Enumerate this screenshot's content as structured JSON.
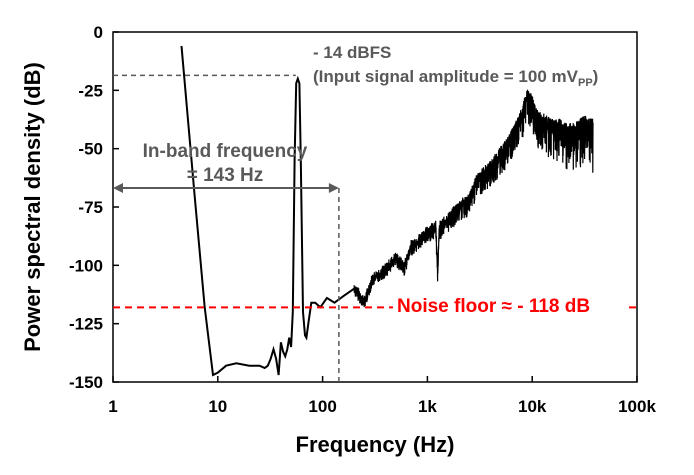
{
  "chart_data": {
    "type": "line",
    "xlabel": "Frequency (Hz)",
    "ylabel": "Power spectral density (dB)",
    "xscale": "log",
    "xlim": [
      1,
      100000
    ],
    "ylim": [
      -150,
      0
    ],
    "grid": false,
    "x_ticks": [
      1,
      10,
      100,
      1000,
      10000,
      100000
    ],
    "x_tick_labels": [
      "1",
      "10",
      "100",
      "1k",
      "10k",
      "100k"
    ],
    "y_ticks": [
      0,
      -25,
      -50,
      -75,
      -100,
      -125,
      -150
    ],
    "y_tick_labels": [
      "0",
      "-25",
      "-50",
      "-75",
      "-100",
      "-125",
      "-150"
    ],
    "series": [
      {
        "color": "#000000",
        "points": [
          [
            4.5,
            -6
          ],
          [
            6,
            -70
          ],
          [
            7.5,
            -118
          ],
          [
            9,
            -147
          ],
          [
            10,
            -146
          ],
          [
            12,
            -143
          ],
          [
            15,
            -142
          ],
          [
            20,
            -143
          ],
          [
            25,
            -143
          ],
          [
            28,
            -144
          ],
          [
            30,
            -143
          ],
          [
            32,
            -140
          ],
          [
            34,
            -136
          ],
          [
            36,
            -140
          ],
          [
            38,
            -147
          ],
          [
            40,
            -133
          ],
          [
            42,
            -137
          ],
          [
            44,
            -139
          ],
          [
            46,
            -136
          ],
          [
            48,
            -131
          ],
          [
            50,
            -135
          ],
          [
            52,
            -120
          ],
          [
            54,
            -55
          ],
          [
            56,
            -22
          ],
          [
            58,
            -20
          ],
          [
            60,
            -22
          ],
          [
            62,
            -55
          ],
          [
            65,
            -120
          ],
          [
            68,
            -130
          ],
          [
            70,
            -131
          ],
          [
            73,
            -125
          ],
          [
            78,
            -116
          ],
          [
            85,
            -116
          ],
          [
            95,
            -118
          ],
          [
            110,
            -114
          ],
          [
            130,
            -116
          ],
          [
            160,
            -113
          ],
          [
            200,
            -110
          ],
          [
            250,
            -116
          ],
          [
            300,
            -106
          ],
          [
            400,
            -102
          ],
          [
            500,
            -97
          ],
          [
            600,
            -101
          ],
          [
            700,
            -92
          ],
          [
            800,
            -90
          ],
          [
            1000,
            -86
          ],
          [
            1200,
            -83
          ],
          [
            1250,
            -103
          ],
          [
            1300,
            -84
          ],
          [
            1600,
            -80
          ],
          [
            2000,
            -75
          ],
          [
            2500,
            -72
          ],
          [
            3000,
            -63
          ],
          [
            4000,
            -58
          ],
          [
            5000,
            -52
          ],
          [
            6000,
            -47
          ],
          [
            7000,
            -41
          ],
          [
            8000,
            -35
          ],
          [
            9000,
            -27
          ],
          [
            10000,
            -30
          ],
          [
            11000,
            -36
          ],
          [
            13000,
            -38
          ],
          [
            15000,
            -40
          ],
          [
            18000,
            -40
          ],
          [
            22000,
            -42
          ],
          [
            26000,
            -42
          ],
          [
            30000,
            -38
          ],
          [
            35000,
            -40
          ],
          [
            38000,
            -40
          ]
        ],
        "noise_band_start_hz": 200,
        "noise_band_amplitude_db": 18
      }
    ],
    "annotations": {
      "peak_label": "- 14 dBFS",
      "input_label_prefix": "(Input signal amplitude = 100 mV",
      "input_label_sub": "PP",
      "input_label_suffix": ")",
      "inband_line1": "In-band frequency",
      "inband_line2": "= 143 Hz",
      "inband_frequency_hz": 143,
      "noise_floor_label": "Noise floor ≈  - 118 dB",
      "noise_floor_db": -118,
      "peak_level_db": -19,
      "peak_frequency_hz": 58
    },
    "colors": {
      "trace": "#000000",
      "annotation": "#595959",
      "noise_floor": "#ff0000"
    }
  }
}
